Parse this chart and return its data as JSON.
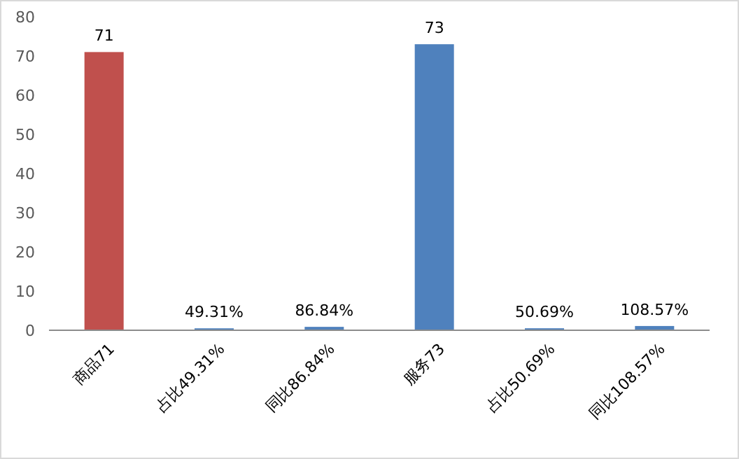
{
  "chart_data": {
    "type": "bar",
    "categories": [
      "商品71",
      "占比49.31%",
      "同比86.84%",
      "服务73",
      "占比50.69%",
      "同比108.57%"
    ],
    "values": [
      71,
      0.4931,
      0.8684,
      73,
      0.5069,
      1.0857
    ],
    "colors": [
      "#c0504d",
      "#4f81bd",
      "#4f81bd",
      "#4f81bd",
      "#4f81bd",
      "#4f81bd"
    ],
    "value_labels": [
      "71",
      "49.31%",
      "86.84%",
      "73",
      "50.69%",
      "108.57%"
    ],
    "ylim": [
      0,
      80
    ],
    "yticks": [
      0,
      10,
      20,
      30,
      40,
      50,
      60,
      70,
      80
    ],
    "grid": false
  }
}
